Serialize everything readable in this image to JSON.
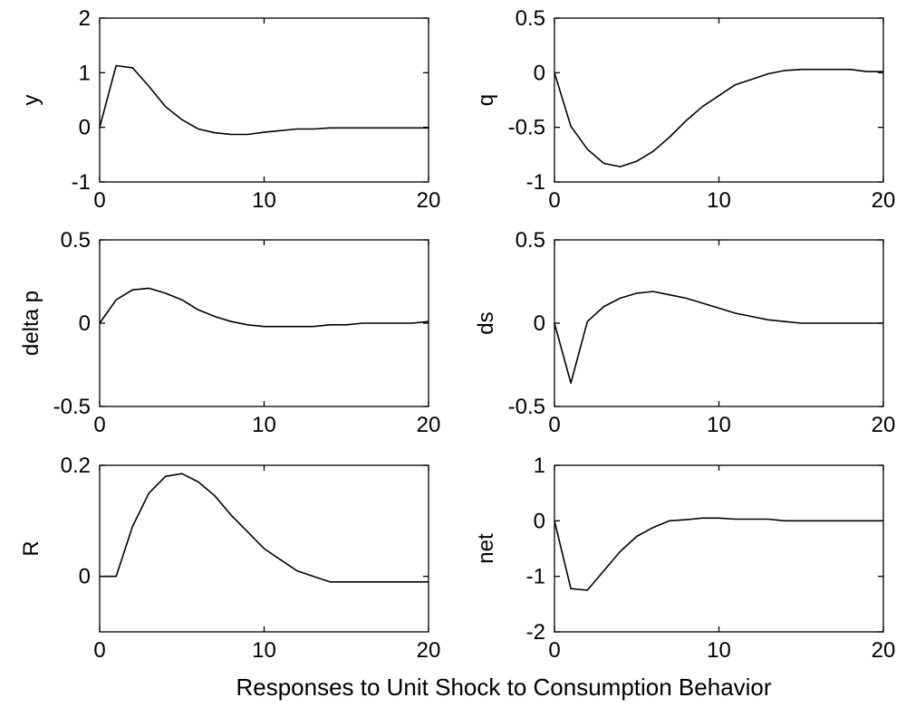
{
  "caption": "Responses to Unit Shock to Consumption Behavior",
  "chart_data": [
    {
      "type": "line",
      "ylabel": "y",
      "xlim": [
        0,
        20
      ],
      "ylim": [
        -1,
        2
      ],
      "xticks": [
        "0",
        "10",
        "20"
      ],
      "yticks": [
        "-1",
        "0",
        "1",
        "2"
      ],
      "x": [
        0,
        1,
        2,
        3,
        4,
        5,
        6,
        7,
        8,
        9,
        10,
        11,
        12,
        13,
        14,
        15,
        16,
        17,
        18,
        19,
        20
      ],
      "values": [
        0,
        1.13,
        1.09,
        0.75,
        0.38,
        0.14,
        -0.03,
        -0.1,
        -0.13,
        -0.13,
        -0.09,
        -0.06,
        -0.03,
        -0.03,
        -0.01,
        -0.01,
        -0.01,
        -0.01,
        -0.01,
        -0.01,
        -0.01
      ]
    },
    {
      "type": "line",
      "ylabel": "q",
      "xlim": [
        0,
        20
      ],
      "ylim": [
        -1,
        0.5
      ],
      "xticks": [
        "0",
        "10",
        "20"
      ],
      "yticks": [
        "-1",
        "-0.5",
        "0",
        "0.5"
      ],
      "x": [
        0,
        1,
        2,
        3,
        4,
        5,
        6,
        7,
        8,
        9,
        10,
        11,
        12,
        13,
        14,
        15,
        16,
        17,
        18,
        19,
        20
      ],
      "values": [
        0,
        -0.49,
        -0.7,
        -0.83,
        -0.86,
        -0.81,
        -0.72,
        -0.59,
        -0.44,
        -0.31,
        -0.21,
        -0.11,
        -0.06,
        -0.01,
        0.02,
        0.03,
        0.03,
        0.03,
        0.03,
        0.01,
        0.01
      ]
    },
    {
      "type": "line",
      "ylabel": "delta p",
      "xlim": [
        0,
        20
      ],
      "ylim": [
        -0.5,
        0.5
      ],
      "xticks": [
        "0",
        "10",
        "20"
      ],
      "yticks": [
        "-0.5",
        "0",
        "0.5"
      ],
      "x": [
        0,
        1,
        2,
        3,
        4,
        5,
        6,
        7,
        8,
        9,
        10,
        11,
        12,
        13,
        14,
        15,
        16,
        17,
        18,
        19,
        20
      ],
      "values": [
        0,
        0.14,
        0.2,
        0.21,
        0.18,
        0.14,
        0.08,
        0.04,
        0.01,
        -0.01,
        -0.02,
        -0.02,
        -0.02,
        -0.02,
        -0.01,
        -0.01,
        0,
        0,
        0,
        0,
        0.01
      ]
    },
    {
      "type": "line",
      "ylabel": "ds",
      "xlim": [
        0,
        20
      ],
      "ylim": [
        -0.5,
        0.5
      ],
      "xticks": [
        "0",
        "10",
        "20"
      ],
      "yticks": [
        "-0.5",
        "0",
        "0.5"
      ],
      "x": [
        0,
        1,
        2,
        3,
        4,
        5,
        6,
        7,
        8,
        9,
        10,
        11,
        12,
        13,
        14,
        15,
        16,
        17,
        18,
        19,
        20
      ],
      "values": [
        0,
        -0.36,
        0.01,
        0.1,
        0.15,
        0.18,
        0.19,
        0.17,
        0.15,
        0.12,
        0.09,
        0.06,
        0.04,
        0.02,
        0.01,
        0,
        0,
        0,
        0,
        0,
        0
      ]
    },
    {
      "type": "line",
      "ylabel": "R",
      "xlim": [
        0,
        20
      ],
      "ylim": [
        -0.1,
        0.2
      ],
      "xticks": [
        "0",
        "10",
        "20"
      ],
      "yticks": [
        "0",
        "0.2"
      ],
      "x": [
        0,
        1,
        2,
        3,
        4,
        5,
        6,
        7,
        8,
        9,
        10,
        11,
        12,
        13,
        14,
        15,
        16,
        17,
        18,
        19,
        20
      ],
      "values": [
        0,
        0,
        0.09,
        0.15,
        0.18,
        0.185,
        0.17,
        0.145,
        0.11,
        0.08,
        0.05,
        0.03,
        0.01,
        0,
        -0.01,
        -0.01,
        -0.01,
        -0.01,
        -0.01,
        -0.01,
        -0.01
      ]
    },
    {
      "type": "line",
      "ylabel": "net",
      "xlim": [
        0,
        20
      ],
      "ylim": [
        -2,
        1
      ],
      "xticks": [
        "0",
        "10",
        "20"
      ],
      "yticks": [
        "-2",
        "-1",
        "0",
        "1"
      ],
      "x": [
        0,
        1,
        2,
        3,
        4,
        5,
        6,
        7,
        8,
        9,
        10,
        11,
        12,
        13,
        14,
        15,
        16,
        17,
        18,
        19,
        20
      ],
      "values": [
        0,
        -1.22,
        -1.25,
        -0.9,
        -0.55,
        -0.28,
        -0.12,
        0,
        0.02,
        0.05,
        0.05,
        0.03,
        0.03,
        0.03,
        0,
        0,
        0,
        0,
        0,
        0,
        0
      ]
    }
  ]
}
